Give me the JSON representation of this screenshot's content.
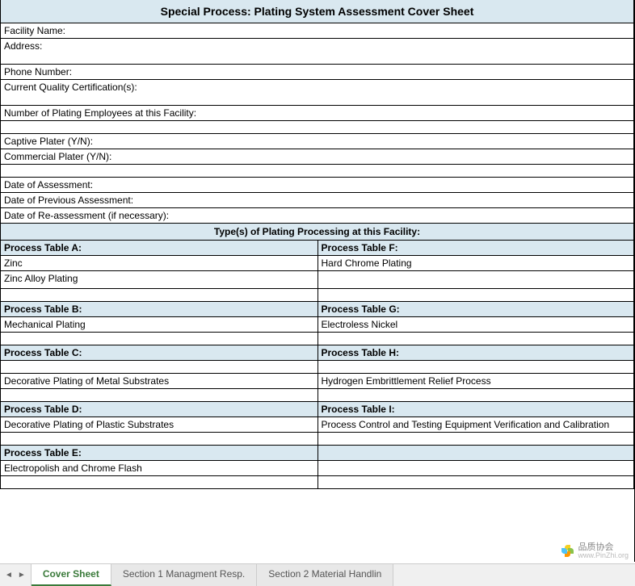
{
  "title": "Special Process: Plating System Assessment Cover Sheet",
  "form_fields": {
    "facility_name": "Facility Name:",
    "address": "Address:",
    "phone": "Phone Number:",
    "cert": "Current Quality Certification(s):",
    "num_employees": "Number of Plating Employees at this Facility:",
    "captive": "Captive Plater (Y/N):",
    "commercial": "Commercial Plater (Y/N):",
    "date_assessment": "Date of Assessment:",
    "date_previous": "Date of Previous Assessment:",
    "date_reassess": "Date of Re-assessment (if necessary):"
  },
  "types_subtitle": "Type(s) of Plating Processing at this Facility:",
  "process_tables": {
    "a": {
      "header": "Process Table A:",
      "r1": "Zinc",
      "r2": "Zinc Alloy Plating"
    },
    "b": {
      "header": "Process Table B:",
      "r1": "Mechanical Plating"
    },
    "c": {
      "header": "Process Table C:",
      "r1": "Decorative Plating of Metal Substrates"
    },
    "d": {
      "header": "Process Table D:",
      "r1": "Decorative Plating of Plastic Substrates"
    },
    "e": {
      "header": "Process Table E:",
      "r1": "Electropolish and Chrome Flash"
    },
    "f": {
      "header": "Process Table F:",
      "r1": "Hard Chrome Plating"
    },
    "g": {
      "header": "Process Table G:",
      "r1": "Electroless Nickel"
    },
    "h": {
      "header": "Process Table H:",
      "r1": "Hydrogen Embrittlement Relief Process"
    },
    "i": {
      "header": "Process Table I:",
      "r1": "Process Control and Testing Equipment Verification and Calibration"
    }
  },
  "tabs": {
    "t1": "Cover Sheet",
    "t2": "Section 1 Managment Resp.",
    "t3": "Section 2 Material Handlin"
  },
  "watermark": {
    "cn": "品质协会",
    "en": "www.PinZhi.org"
  },
  "colors": {
    "header_bg": "#d9e8f0",
    "active_tab": "#3a7a3a"
  }
}
